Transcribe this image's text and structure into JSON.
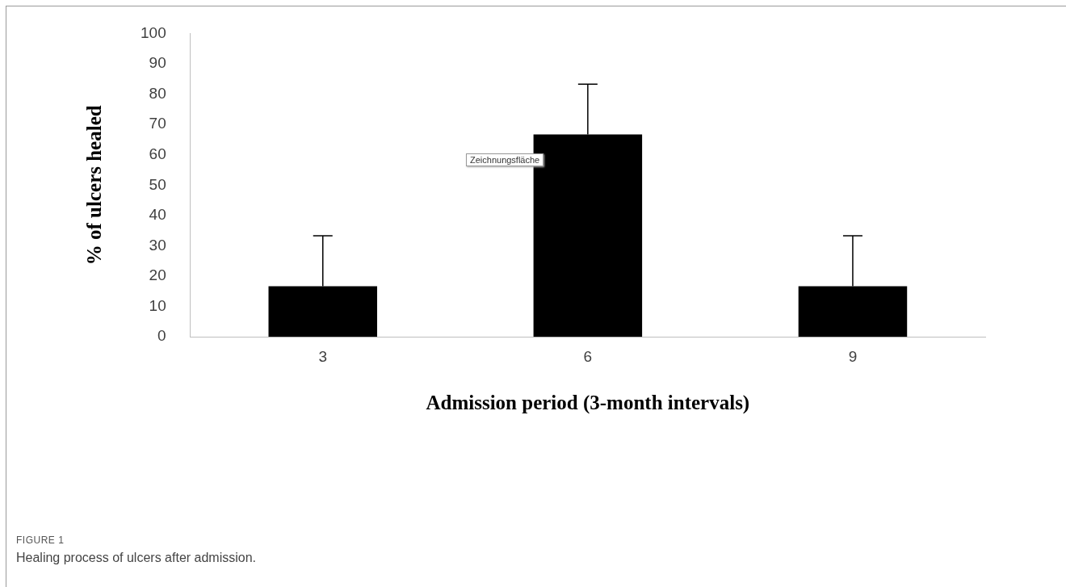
{
  "chart_data": {
    "type": "bar",
    "xlabel": "Admission period (3-month intervals)",
    "ylabel": "% of ulcers healed",
    "categories": [
      "3",
      "6",
      "9"
    ],
    "values": [
      16.7,
      66.7,
      16.7
    ],
    "color": "#000000",
    "errors": [
      [
        16.7,
        33.3
      ],
      [
        66.7,
        83.3
      ],
      [
        16.7,
        33.3
      ]
    ],
    "ylim": [
      0,
      100
    ],
    "yticks": [
      0,
      10,
      20,
      30,
      40,
      50,
      60,
      70,
      80,
      90,
      100
    ],
    "grid": false,
    "legend": false,
    "annotations": [
      "Zeichnungsfläche",
      "FIGURE 1",
      "Healing process of ulcers after admission."
    ]
  }
}
